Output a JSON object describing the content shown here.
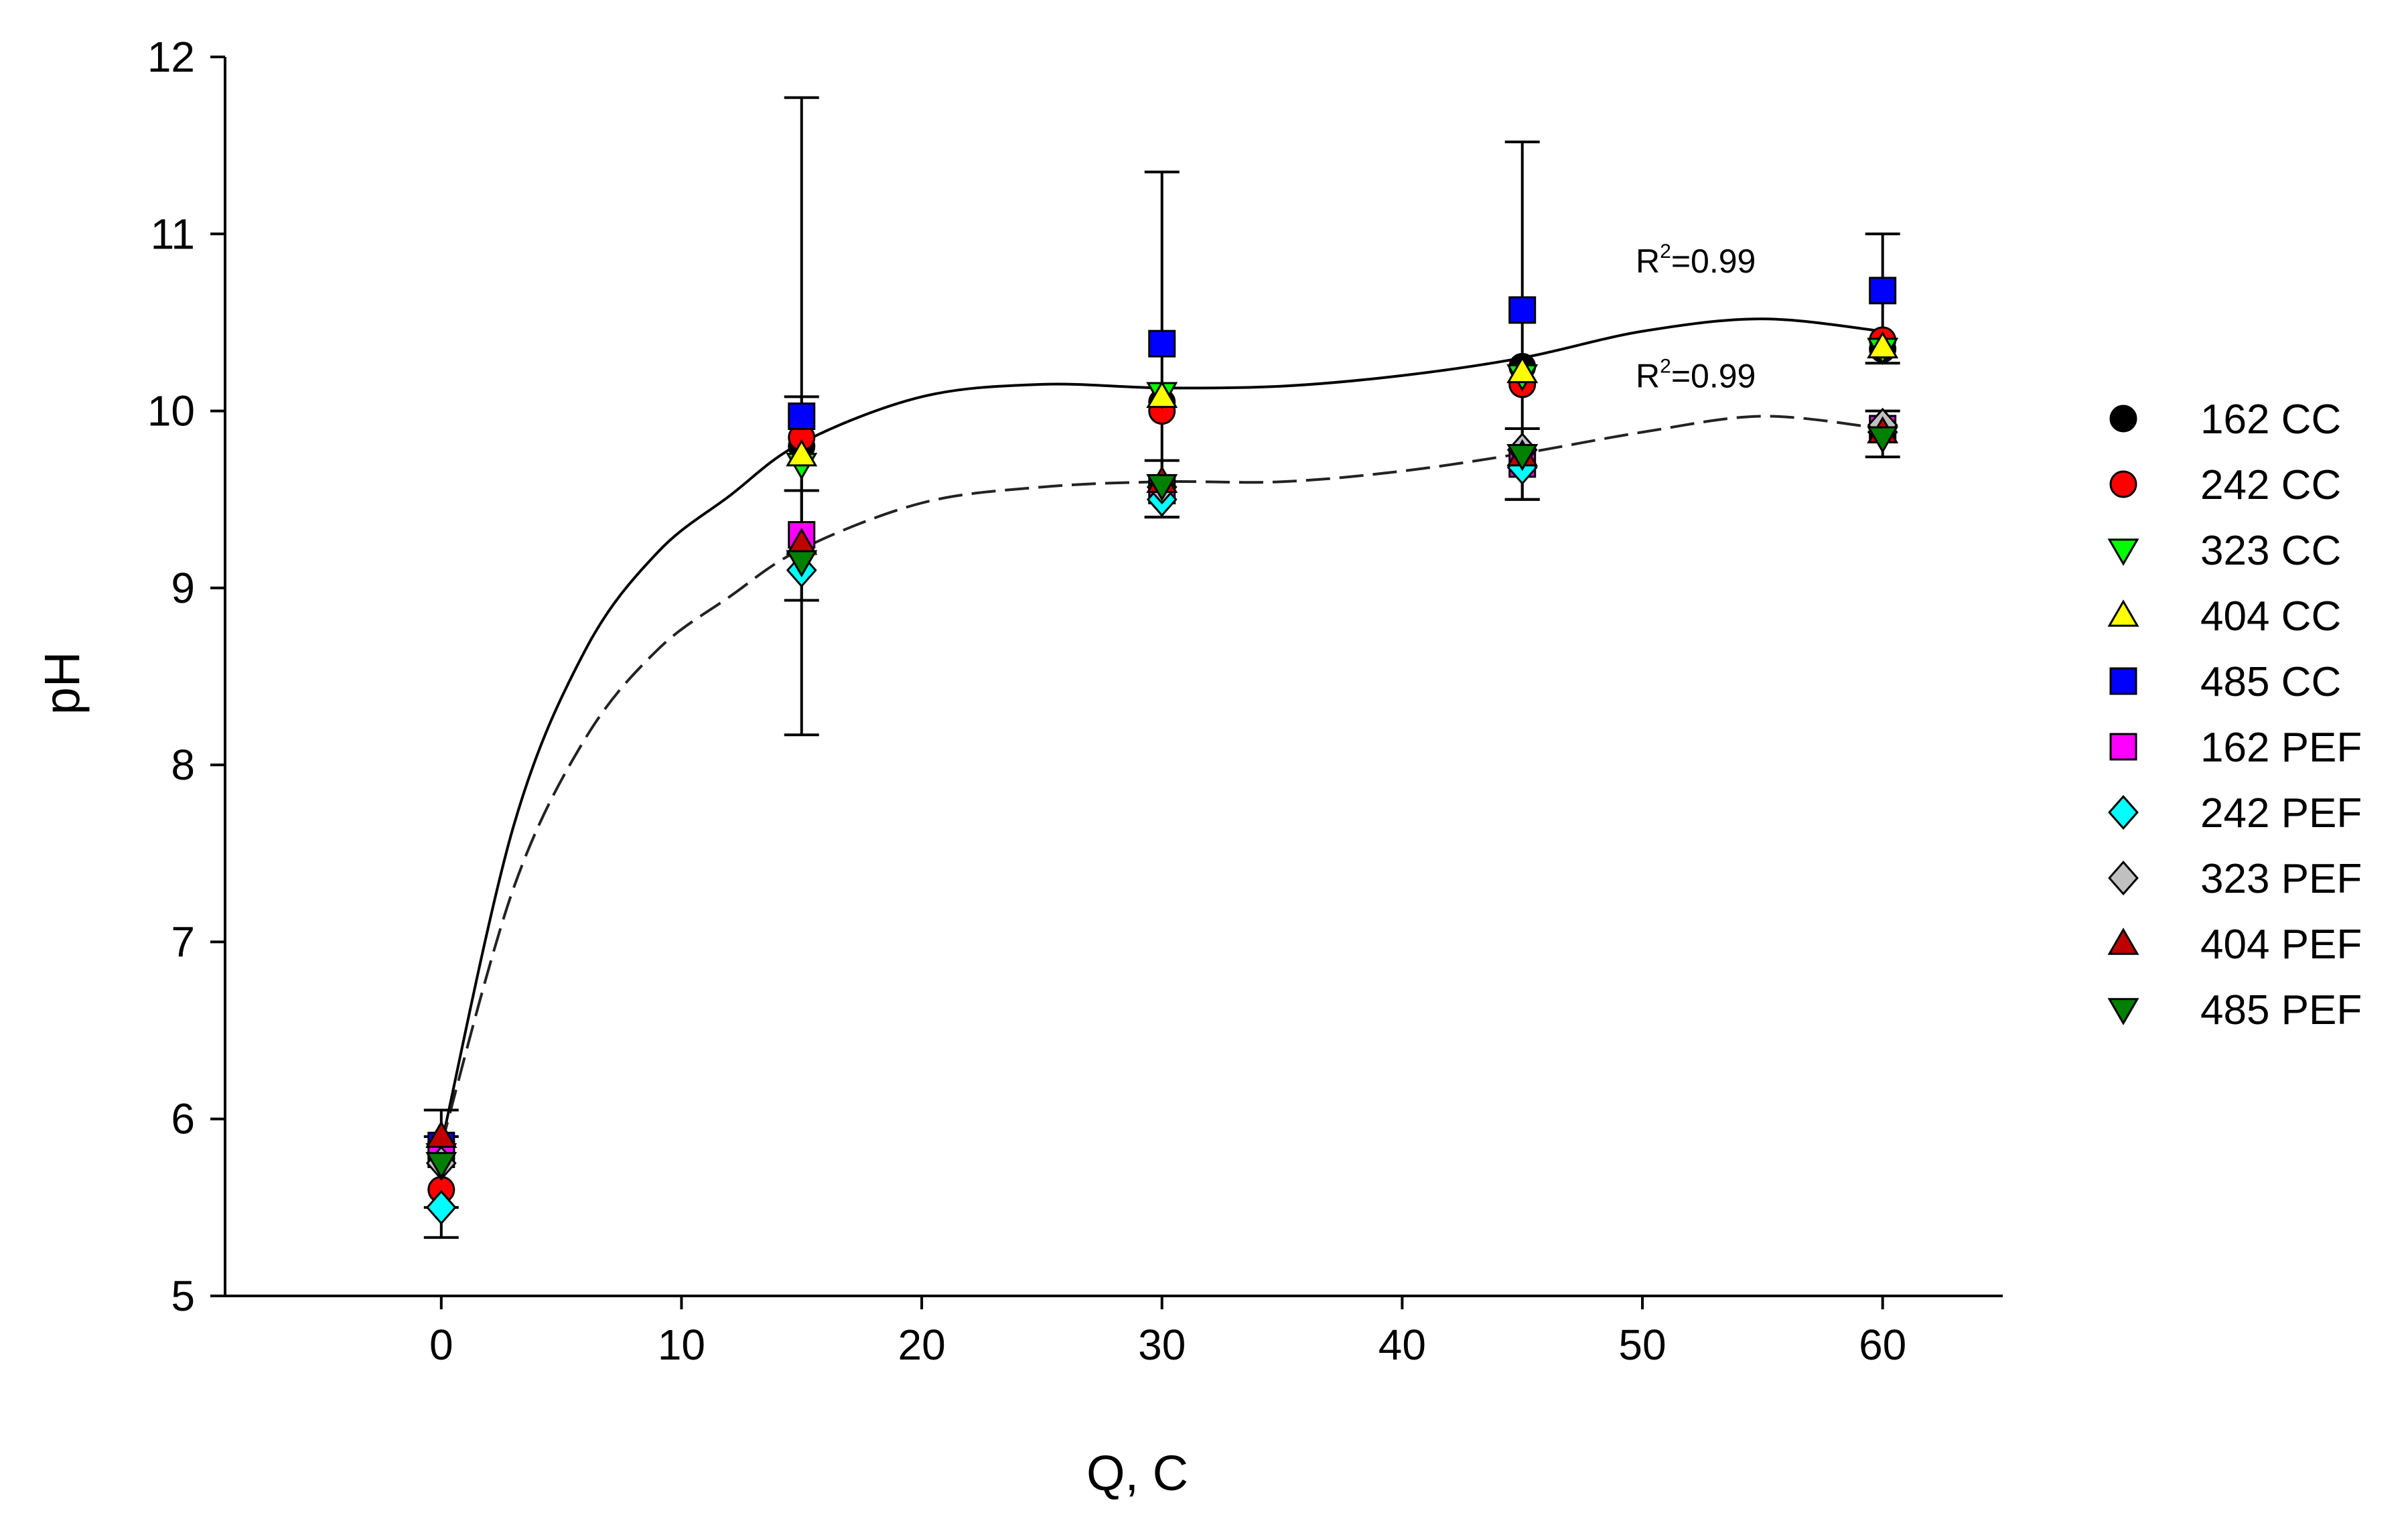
{
  "chart_data": {
    "type": "scatter",
    "title": "",
    "xlabel": "Q, C",
    "ylabel": "pH",
    "xlim": [
      -9,
      65
    ],
    "ylim": [
      5,
      12
    ],
    "xticks": [
      0,
      10,
      20,
      30,
      40,
      50,
      60
    ],
    "yticks": [
      5,
      6,
      7,
      8,
      9,
      10,
      11,
      12
    ],
    "x": [
      0,
      15,
      30,
      45,
      60
    ],
    "legend_position": "right",
    "series": [
      {
        "name": "162 CC",
        "marker": "circle",
        "color": "#000000",
        "values": [
          5.85,
          9.8,
          10.05,
          10.25,
          10.35
        ]
      },
      {
        "name": "242 CC",
        "marker": "circle",
        "color": "#ff0000",
        "values": [
          5.6,
          9.85,
          10.0,
          10.15,
          10.4
        ]
      },
      {
        "name": "323 CC",
        "marker": "triangle-down",
        "color": "#00ff00",
        "values": [
          5.8,
          9.7,
          10.1,
          10.2,
          10.35
        ]
      },
      {
        "name": "404 CC",
        "marker": "triangle-up",
        "color": "#ffff00",
        "values": [
          5.9,
          9.75,
          10.08,
          10.22,
          10.36
        ]
      },
      {
        "name": "485 CC",
        "marker": "square",
        "color": "#0000ff",
        "values": [
          5.85,
          9.97,
          10.38,
          10.57,
          10.68
        ]
      },
      {
        "name": "162 PEF",
        "marker": "square",
        "color": "#ff00ff",
        "values": [
          5.8,
          9.3,
          9.55,
          9.7,
          9.9
        ]
      },
      {
        "name": "242 PEF",
        "marker": "diamond",
        "color": "#00ffff",
        "values": [
          5.5,
          9.1,
          9.5,
          9.68,
          9.88
        ]
      },
      {
        "name": "323 PEF",
        "marker": "diamond",
        "color": "#c0c0c0",
        "values": [
          5.75,
          9.2,
          9.57,
          9.78,
          9.92
        ]
      },
      {
        "name": "404 PEF",
        "marker": "triangle-up",
        "color": "#c00000",
        "values": [
          5.9,
          9.25,
          9.6,
          9.75,
          9.88
        ]
      },
      {
        "name": "485 PEF",
        "marker": "triangle-down",
        "color": "#008000",
        "values": [
          5.75,
          9.15,
          9.58,
          9.75,
          9.85
        ]
      }
    ],
    "error_bars": [
      {
        "x": 0,
        "low": 5.5,
        "high": 6.05
      },
      {
        "x": 0,
        "low": 5.33,
        "high": 5.9
      },
      {
        "x": 15,
        "low": 8.17,
        "high": 11.77
      },
      {
        "x": 15,
        "low": 8.93,
        "high": 9.55
      },
      {
        "x": 15,
        "low": 9.55,
        "high": 10.08
      },
      {
        "x": 30,
        "low": 9.4,
        "high": 11.35
      },
      {
        "x": 30,
        "low": 9.4,
        "high": 9.72
      },
      {
        "x": 45,
        "low": 9.5,
        "high": 11.52
      },
      {
        "x": 45,
        "low": 9.5,
        "high": 9.9
      },
      {
        "x": 60,
        "low": 10.27,
        "high": 11.0
      },
      {
        "x": 60,
        "low": 9.74,
        "high": 10.0
      }
    ],
    "fits": [
      {
        "name": "CC fit",
        "style": "solid",
        "r2_label": "R2=0.99",
        "points": [
          [
            0,
            5.85
          ],
          [
            3,
            7.65
          ],
          [
            6,
            8.65
          ],
          [
            9,
            9.2
          ],
          [
            12,
            9.52
          ],
          [
            15,
            9.82
          ],
          [
            20,
            10.08
          ],
          [
            25,
            10.15
          ],
          [
            30,
            10.13
          ],
          [
            35,
            10.14
          ],
          [
            40,
            10.2
          ],
          [
            45,
            10.3
          ],
          [
            50,
            10.45
          ],
          [
            55,
            10.52
          ],
          [
            60,
            10.45
          ]
        ]
      },
      {
        "name": "PEF fit",
        "style": "dashed",
        "r2_label": "R2=0.99",
        "points": [
          [
            0,
            5.85
          ],
          [
            3,
            7.3
          ],
          [
            6,
            8.15
          ],
          [
            9,
            8.65
          ],
          [
            12,
            8.95
          ],
          [
            15,
            9.22
          ],
          [
            20,
            9.48
          ],
          [
            25,
            9.57
          ],
          [
            30,
            9.6
          ],
          [
            35,
            9.6
          ],
          [
            40,
            9.66
          ],
          [
            45,
            9.76
          ],
          [
            50,
            9.88
          ],
          [
            55,
            9.97
          ],
          [
            60,
            9.9
          ]
        ]
      }
    ],
    "annotations": [
      {
        "base": "R",
        "sup": "2",
        "rest": "=0.99",
        "x": 50,
        "y": 10.85
      },
      {
        "base": "R",
        "sup": "2",
        "rest": "=0.99",
        "x": 50,
        "y": 10.2
      }
    ]
  }
}
